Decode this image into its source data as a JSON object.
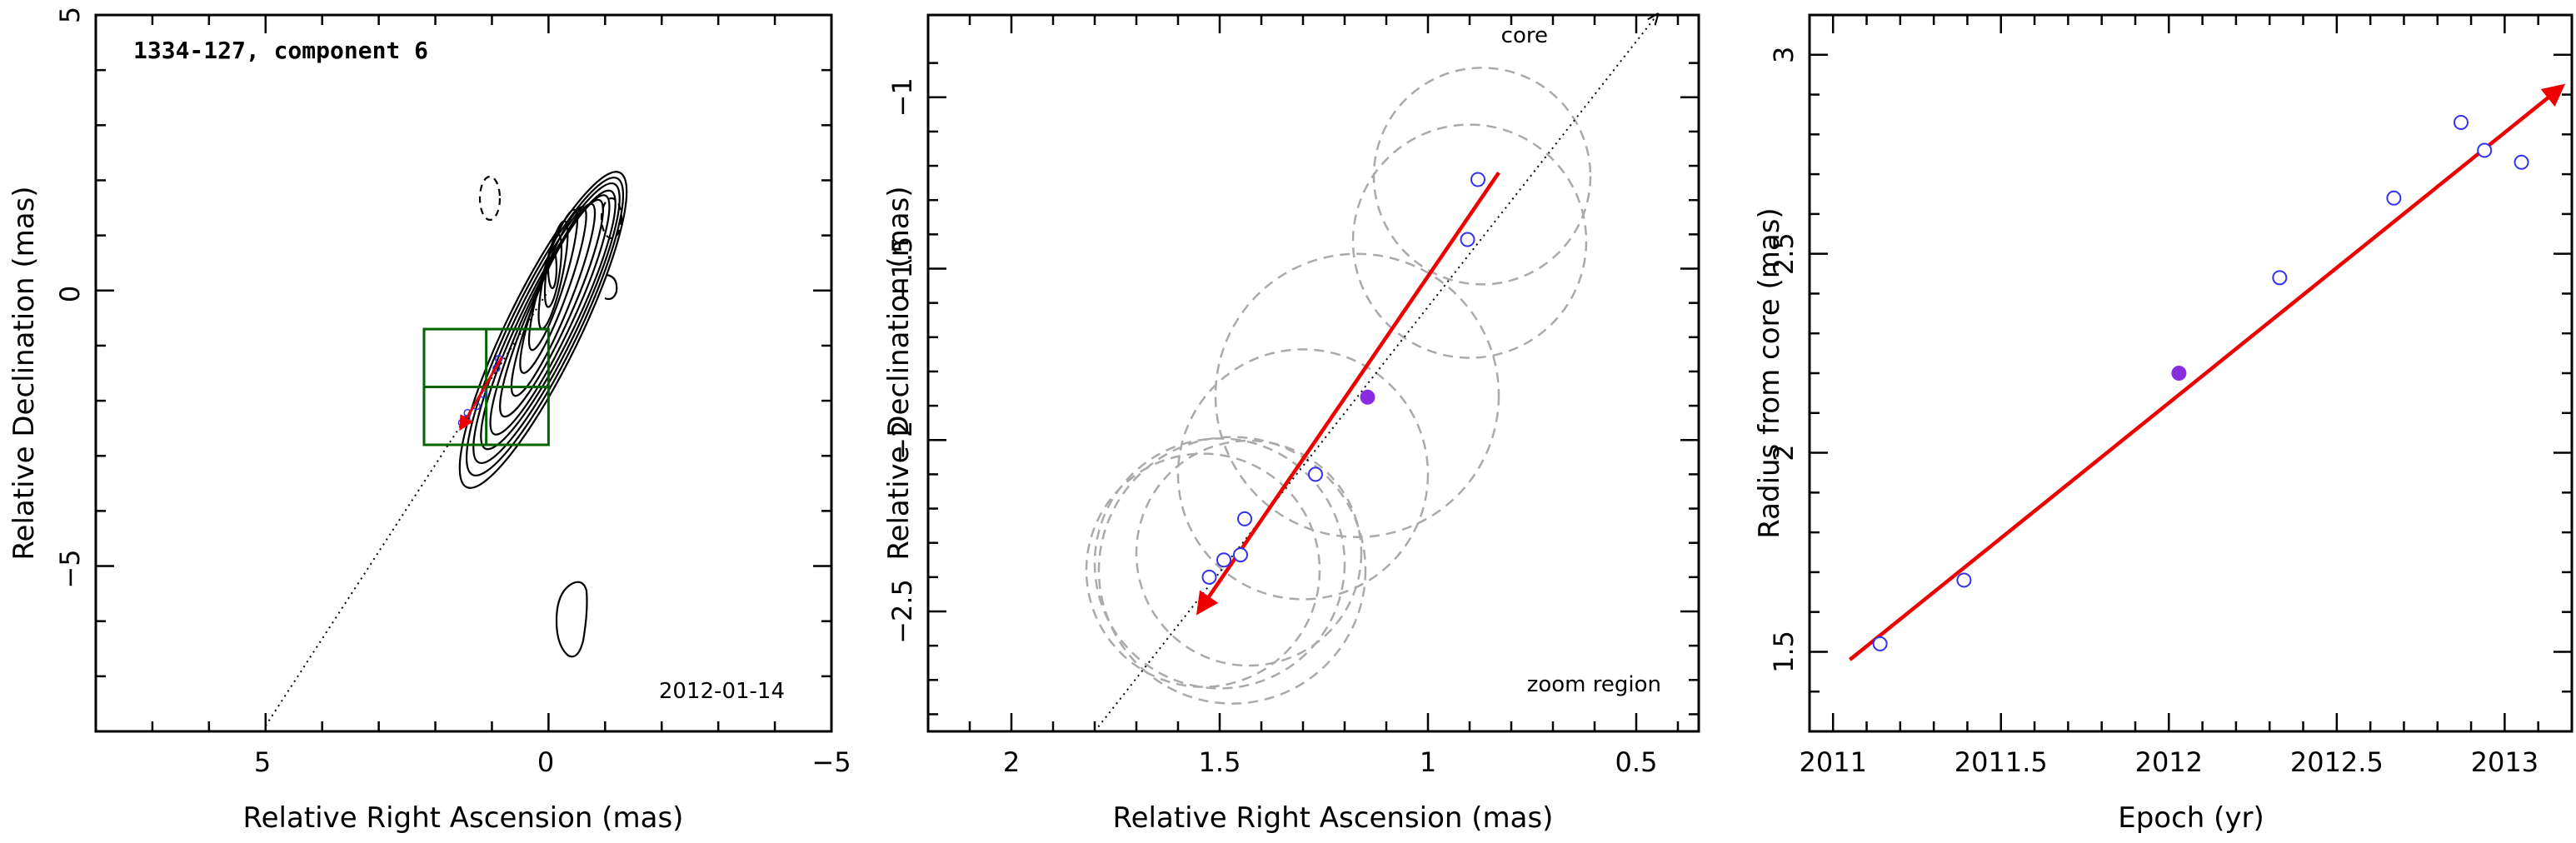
{
  "colors": {
    "fit_arrow": "#ee0000",
    "observed_point": "#3333ee",
    "current_epoch_point": "#8a2be2",
    "zoom_box": "#006400",
    "fit_circle": "#aaaaaa",
    "contour": "#000000"
  },
  "chart_data": [
    {
      "type": "scatter",
      "title": "1334-127, component 6",
      "date_label": "2012-01-14",
      "xlabel": "Relative Right Ascension (mas)",
      "ylabel": "Relative Declination (mas)",
      "xlim": [
        8,
        -5
      ],
      "ylim": [
        -8,
        5
      ],
      "x_reversed": true,
      "xticks": [
        "5",
        "0",
        "−5"
      ],
      "yticks": [
        "−5",
        "0",
        "5"
      ],
      "contour_map": "VLBI total intensity contours (solid positive, dashed negative)",
      "zoom_box": {
        "ra": [
          2.2,
          0.0
        ],
        "dec": [
          -2.8,
          -0.7
        ]
      },
      "trajectory_line": {
        "from": [
          5.0,
          -7.9
        ],
        "to": [
          0.0,
          0.0
        ],
        "style": "dotted"
      },
      "points": [
        {
          "ra": 1.53,
          "dec": -2.4
        },
        {
          "ra": 1.5,
          "dec": -2.35
        },
        {
          "ra": 1.45,
          "dec": -2.33
        },
        {
          "ra": 1.43,
          "dec": -2.22
        },
        {
          "ra": 1.27,
          "dec": -2.1
        },
        {
          "ra": 1.15,
          "dec": -1.88
        },
        {
          "ra": 0.92,
          "dec": -1.41
        },
        {
          "ra": 0.88,
          "dec": -1.24
        }
      ],
      "fit_arrow": {
        "from": [
          0.83,
          -1.22
        ],
        "to": [
          1.55,
          -2.5
        ]
      }
    },
    {
      "type": "scatter",
      "annotation_core": "core",
      "annotation_zoom": "zoom region",
      "xlabel": "Relative Right Ascension (mas)",
      "ylabel": "Relative Declination (mas)",
      "xlim": [
        2.2,
        0.35
      ],
      "ylim": [
        -2.85,
        -0.76
      ],
      "x_reversed": true,
      "xticks": [
        2,
        1.5,
        1,
        0.5
      ],
      "xtick_labels": [
        "2",
        "1.5",
        "1",
        "0.5"
      ],
      "yticks": [
        -2.5,
        -2,
        -1.5,
        -1
      ],
      "ytick_labels": [
        "−2.5",
        "−2",
        "−1.5",
        "−1"
      ],
      "points": [
        {
          "ra": 1.525,
          "dec": -2.4,
          "epoch": 2011.14
        },
        {
          "ra": 1.49,
          "dec": -2.35,
          "epoch": 2011.39
        },
        {
          "ra": 1.45,
          "dec": -2.335,
          "epoch": 2011.39
        },
        {
          "ra": 1.44,
          "dec": -2.23,
          "epoch": 2012.33
        },
        {
          "ra": 1.27,
          "dec": -2.1,
          "epoch": 2012.67
        },
        {
          "ra": 1.145,
          "dec": -1.875,
          "epoch": 2012.03,
          "highlight": true
        },
        {
          "ra": 0.905,
          "dec": -1.415,
          "epoch": 2012.87
        },
        {
          "ra": 0.88,
          "dec": -1.24,
          "epoch": 2012.94
        }
      ],
      "fit_circles": [
        {
          "ra": 1.54,
          "dec": -2.38,
          "r": 0.28
        },
        {
          "ra": 1.5,
          "dec": -2.36,
          "r": 0.3
        },
        {
          "ra": 1.47,
          "dec": -2.38,
          "r": 0.32
        },
        {
          "ra": 1.43,
          "dec": -2.33,
          "r": 0.27
        },
        {
          "ra": 1.3,
          "dec": -2.1,
          "r": 0.3
        },
        {
          "ra": 1.17,
          "dec": -1.87,
          "r": 0.34
        },
        {
          "ra": 0.9,
          "dec": -1.42,
          "r": 0.28
        },
        {
          "ra": 0.87,
          "dec": -1.23,
          "r": 0.26
        }
      ],
      "trajectory_line": {
        "from": [
          1.8,
          -2.85
        ],
        "to": [
          0.45,
          -0.76
        ],
        "style": "dotted"
      },
      "fit_arrow": {
        "from": [
          0.83,
          -1.22
        ],
        "to": [
          1.55,
          -2.5
        ]
      }
    },
    {
      "type": "scatter",
      "xlabel": "Epoch (yr)",
      "ylabel": "Radius from core (mas)",
      "xlim": [
        2010.93,
        2013.2
      ],
      "ylim": [
        1.3,
        3.1
      ],
      "xticks": [
        2011,
        2011.5,
        2012,
        2012.5,
        2013
      ],
      "xtick_labels": [
        "2011",
        "2011.5",
        "2012",
        "2012.5",
        "2013"
      ],
      "yticks": [
        1.5,
        2,
        2.5,
        3
      ],
      "ytick_labels": [
        "1.5",
        "2",
        "2.5",
        "3"
      ],
      "points": [
        {
          "x": 2011.14,
          "y": 1.52
        },
        {
          "x": 2011.39,
          "y": 1.68
        },
        {
          "x": 2012.03,
          "y": 2.2,
          "highlight": true
        },
        {
          "x": 2012.33,
          "y": 2.44
        },
        {
          "x": 2012.67,
          "y": 2.64
        },
        {
          "x": 2012.87,
          "y": 2.83
        },
        {
          "x": 2012.94,
          "y": 2.76
        },
        {
          "x": 2013.05,
          "y": 2.73
        }
      ],
      "fit_line": {
        "from": [
          2011.05,
          1.48
        ],
        "to": [
          2013.17,
          2.92
        ]
      }
    }
  ]
}
